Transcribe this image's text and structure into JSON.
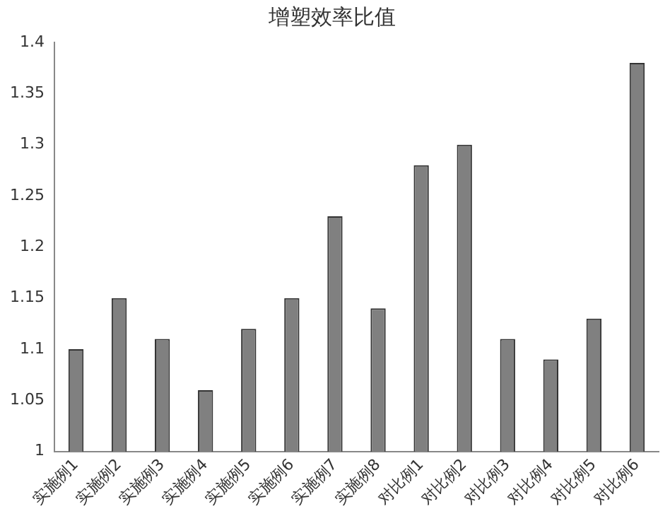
{
  "chart_data": {
    "type": "bar",
    "title": "增塑效率比值",
    "categories": [
      "实施例1",
      "实施例2",
      "实施例3",
      "实施例4",
      "实施例5",
      "实施例6",
      "实施例7",
      "实施例8",
      "对比例1",
      "对比例2",
      "对比例3",
      "对比例4",
      "对比例5",
      "对比例6"
    ],
    "values": [
      1.1,
      1.15,
      1.11,
      1.06,
      1.12,
      1.15,
      1.23,
      1.14,
      1.28,
      1.3,
      1.11,
      1.09,
      1.13,
      1.38
    ],
    "color": "#808080",
    "ylim": [
      1,
      1.4
    ],
    "yticks": [
      1,
      1.05,
      1.1,
      1.15,
      1.2,
      1.25,
      1.3,
      1.35,
      1.4
    ],
    "grid": false,
    "legend": false
  }
}
